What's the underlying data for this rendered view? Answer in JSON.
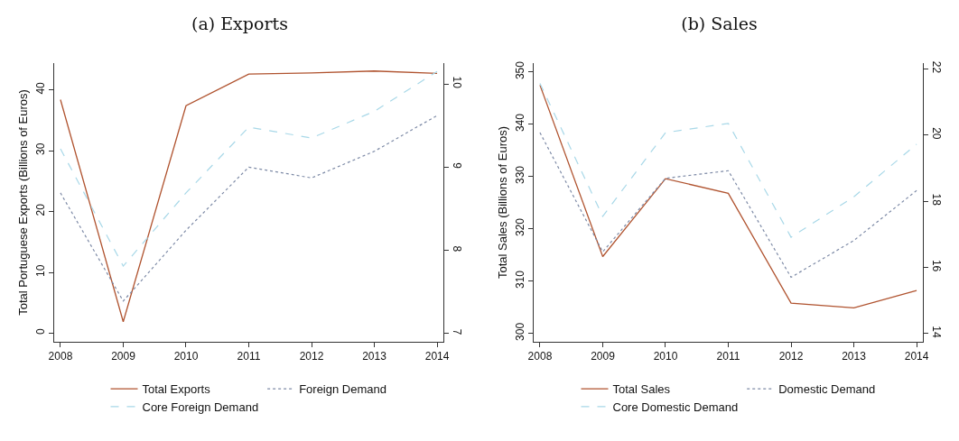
{
  "chart_data": [
    {
      "type": "line",
      "title": "(a) Exports",
      "ylabel": "Total Portuguese Exports (Billions of Euros)",
      "x": [
        2008,
        2009,
        2010,
        2011,
        2012,
        2013,
        2014
      ],
      "xlim": [
        2007.9,
        2014.1
      ],
      "xticks": [
        2008,
        2009,
        2010,
        2011,
        2012,
        2013,
        2014
      ],
      "ylim": [
        -1.4,
        44.4
      ],
      "yticks": [
        0,
        10,
        20,
        30,
        40
      ],
      "y2lim": [
        6.9,
        10.25
      ],
      "y2ticks": [
        7,
        8,
        9,
        10
      ],
      "grid": false,
      "legend": "bottom",
      "marker": "none",
      "series": [
        {
          "name": "Total Exports",
          "color": "#b0532f",
          "line_style": "solid",
          "values": [
            38.4,
            1.9,
            37.4,
            42.6,
            42.8,
            43.1,
            42.7
          ]
        },
        {
          "name": "Foreign Demand",
          "color": "#7d8aa6",
          "line_style": "dotted",
          "axis": "y2",
          "values": [
            8.69,
            7.39,
            8.24,
            9.0,
            8.87,
            9.19,
            9.62
          ]
        },
        {
          "name": "Core Foreign Demand",
          "color": "#a8d8e8",
          "line_style": "dashed",
          "axis": "y2",
          "values": [
            9.22,
            7.81,
            8.69,
            9.48,
            9.35,
            9.67,
            10.15
          ]
        }
      ]
    },
    {
      "type": "line",
      "title": "(b) Sales",
      "ylabel": "Total Sales (Billions of Euros)",
      "x": [
        2008,
        2009,
        2010,
        2011,
        2012,
        2013,
        2014
      ],
      "xlim": [
        2007.9,
        2014.1
      ],
      "xticks": [
        2008,
        2009,
        2010,
        2011,
        2012,
        2013,
        2014
      ],
      "ylim": [
        298.4,
        351.7
      ],
      "yticks": [
        300,
        310,
        320,
        330,
        340,
        350
      ],
      "y2lim": [
        13.75,
        22.17
      ],
      "y2ticks": [
        14,
        16,
        18,
        20,
        22
      ],
      "grid": false,
      "legend": "bottom",
      "marker": "none",
      "series": [
        {
          "name": "Total Sales",
          "color": "#b0532f",
          "line_style": "solid",
          "values": [
            347.5,
            314.7,
            329.6,
            326.8,
            305.8,
            304.9,
            308.2
          ]
        },
        {
          "name": "Domestic Demand",
          "color": "#7d8aa6",
          "line_style": "dotted",
          "axis": "y2",
          "values": [
            20.07,
            16.47,
            18.69,
            18.92,
            15.7,
            16.81,
            18.32
          ]
        },
        {
          "name": "Core Domestic Demand",
          "color": "#a8d8e8",
          "line_style": "dashed",
          "axis": "y2",
          "values": [
            21.56,
            17.54,
            20.07,
            20.35,
            16.91,
            18.13,
            19.72
          ]
        }
      ]
    }
  ]
}
